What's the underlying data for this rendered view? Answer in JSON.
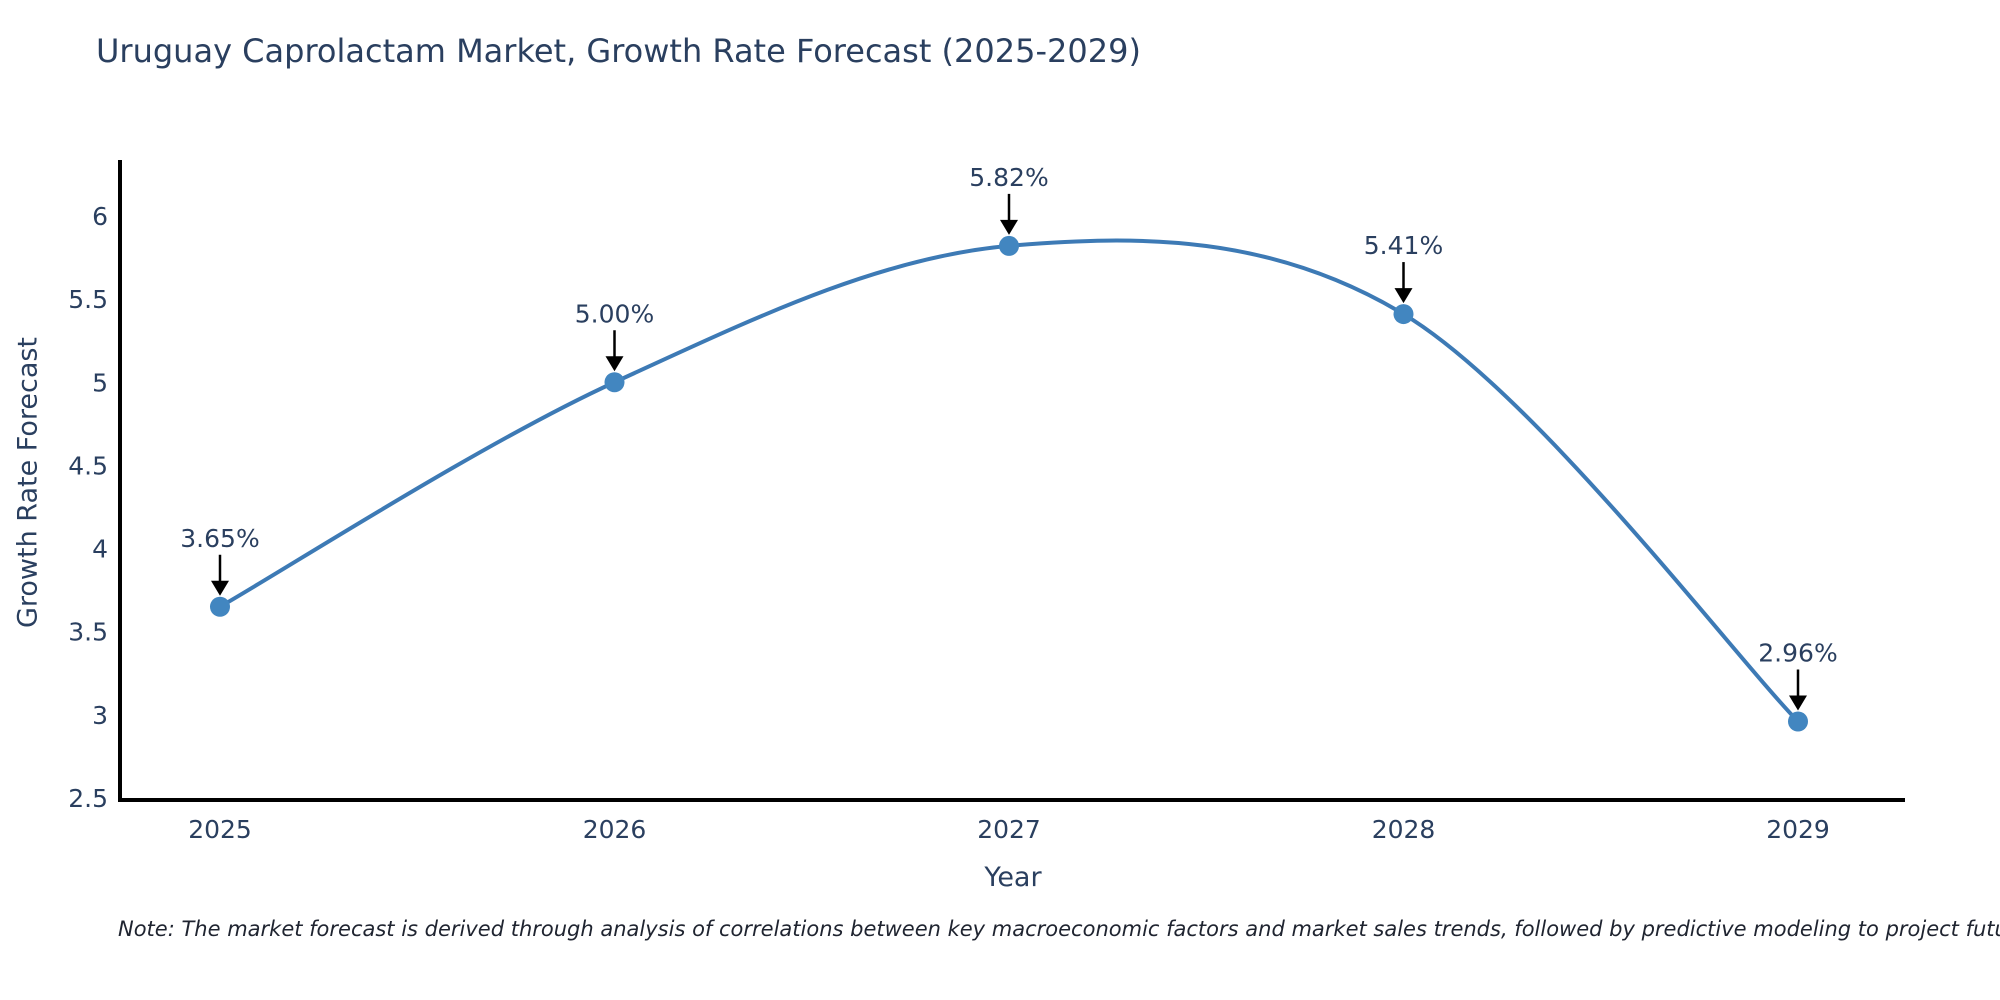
{
  "chart": {
    "title": "Uruguay Caprolactam Market, Growth Rate Forecast (2025-2029)",
    "xlabel": "Year",
    "ylabel": "Growth Rate Forecast",
    "note": "Note: The market forecast is derived through analysis of correlations between key macroeconomic factors and market sales trends, followed by predictive modeling to project future sales"
  },
  "chart_data": {
    "type": "line",
    "title": "Uruguay Caprolactam Market, Growth Rate Forecast (2025-2029)",
    "xlabel": "Year",
    "ylabel": "Growth Rate Forecast",
    "x": [
      2025,
      2026,
      2027,
      2028,
      2029
    ],
    "y": [
      3.65,
      5.0,
      5.82,
      5.41,
      2.96
    ],
    "point_labels": [
      "3.65%",
      "5.00%",
      "5.82%",
      "5.41%",
      "2.96%"
    ],
    "xticks": [
      "2025",
      "2026",
      "2027",
      "2028",
      "2029"
    ],
    "yticks": [
      "2.5",
      "3",
      "3.5",
      "4",
      "4.5",
      "5",
      "5.5",
      "6"
    ],
    "ylim": [
      2.5,
      6.35
    ],
    "line_shape": "spline",
    "grid": false,
    "legend_position": "none",
    "colors": {
      "line": "#3d7ab5",
      "marker": "#4286c0",
      "text": "#2a3f5f",
      "axis": "#000000",
      "arrow": "#000000",
      "background": "#ffffff"
    }
  }
}
